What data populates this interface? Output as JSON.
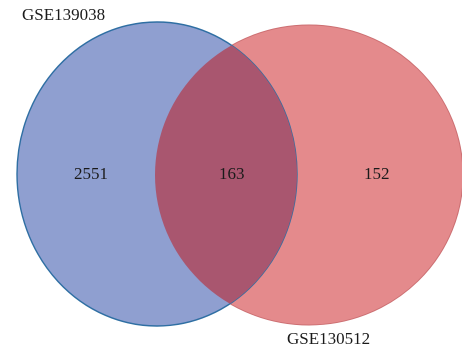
{
  "venn": {
    "sets": [
      {
        "label": "GSE139038",
        "count": "2551",
        "color": "#8f9fd0",
        "stroke": "#2f6fa3"
      },
      {
        "label": "GSE130512",
        "count": "152",
        "color": "#e48a8c",
        "stroke": "#cc6f72"
      }
    ],
    "intersection": {
      "count": "163",
      "color": "#a9566f"
    }
  }
}
